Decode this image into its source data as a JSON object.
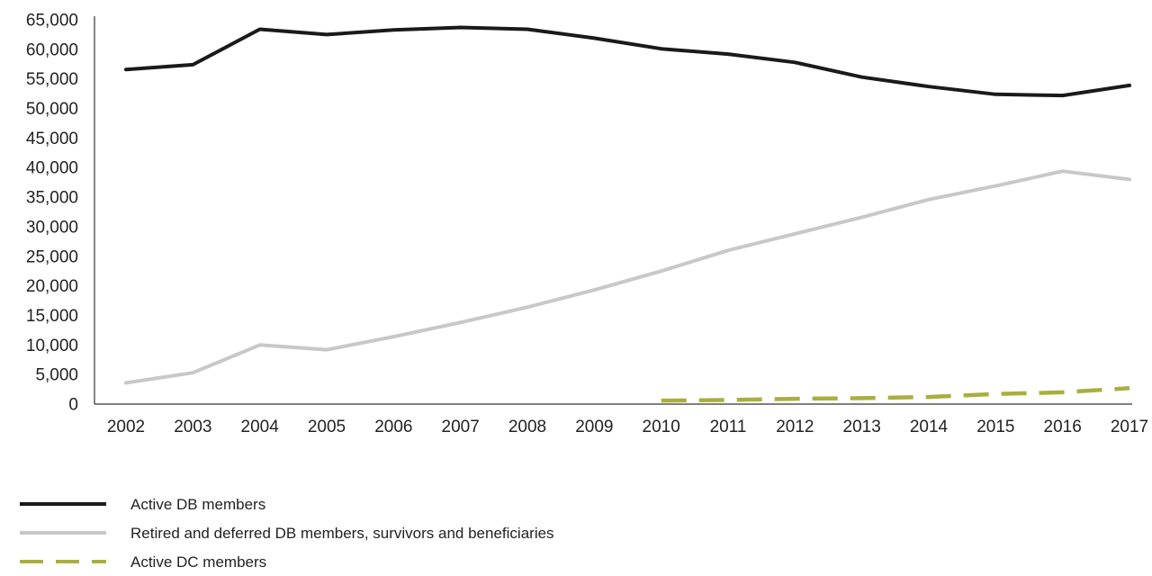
{
  "chart_data": {
    "type": "line",
    "x": [
      "2002",
      "2003",
      "2004",
      "2005",
      "2006",
      "2007",
      "2008",
      "2009",
      "2010",
      "2011",
      "2012",
      "2013",
      "2014",
      "2015",
      "2016",
      "2017"
    ],
    "ylim": [
      0,
      65000
    ],
    "yticks": [
      0,
      5000,
      10000,
      15000,
      20000,
      25000,
      30000,
      35000,
      40000,
      45000,
      50000,
      55000,
      60000,
      65000
    ],
    "ytick_labels": [
      "0",
      "5,000",
      "10,000",
      "15,000",
      "20,000",
      "25,000",
      "30,000",
      "35,000",
      "40,000",
      "45,000",
      "50,000",
      "55,000",
      "60,000",
      "65,000"
    ],
    "grid": false,
    "legend_position": "bottom-left",
    "series": [
      {
        "name": "Active DB members",
        "color": "#1a1a1a",
        "style": "solid",
        "values": [
          56600,
          57400,
          63400,
          62500,
          63300,
          63700,
          63400,
          61900,
          60100,
          59200,
          57800,
          55300,
          53700,
          52400,
          52200,
          53900
        ]
      },
      {
        "name": "Retired and deferred DB members, survivors and beneficiaries",
        "color": "#c8c8c8",
        "style": "solid",
        "values": [
          3600,
          5300,
          10000,
          9200,
          11400,
          13800,
          16400,
          19300,
          22500,
          26000,
          28800,
          31600,
          34600,
          36900,
          39400,
          38000
        ]
      },
      {
        "name": "Active DC members",
        "color": "#a9af3d",
        "style": "dashed",
        "values": [
          null,
          null,
          null,
          null,
          null,
          null,
          null,
          null,
          600,
          700,
          900,
          1000,
          1200,
          1700,
          2000,
          2700
        ]
      }
    ]
  }
}
